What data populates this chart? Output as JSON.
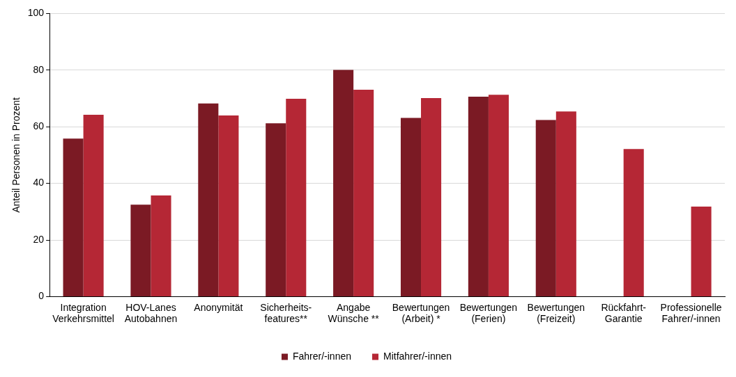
{
  "chart_data": {
    "type": "bar",
    "ylabel": "Anteil Personen in Prozent",
    "categories": [
      "Integration Verkehrsmittel",
      "HOV-Lanes Autobahnen",
      "Anonymität",
      "Sicherheits-features**",
      "Angabe Wünsche **",
      "Bewertungen (Arbeit) *",
      "Bewertungen (Ferien)",
      "Bewertungen (Freizeit)",
      "Rückfahrt-Garantie",
      "Professionelle Fahrer/-innen"
    ],
    "series": [
      {
        "name": "Fahrer/-innen",
        "color": "#7b1a24",
        "values": [
          55.8,
          32.5,
          68.2,
          61.2,
          80.1,
          63.1,
          70.6,
          62.4,
          null,
          null
        ]
      },
      {
        "name": "Mitfahrer/-innen",
        "color": "#b52735",
        "values": [
          64.2,
          35.7,
          64.0,
          69.9,
          73.1,
          70.1,
          71.3,
          65.4,
          52.1,
          31.8
        ]
      }
    ],
    "ylim": [
      0,
      100
    ],
    "yticks": [
      0,
      20,
      40,
      60,
      80,
      100
    ],
    "grid": "y",
    "legend": "bottom"
  }
}
